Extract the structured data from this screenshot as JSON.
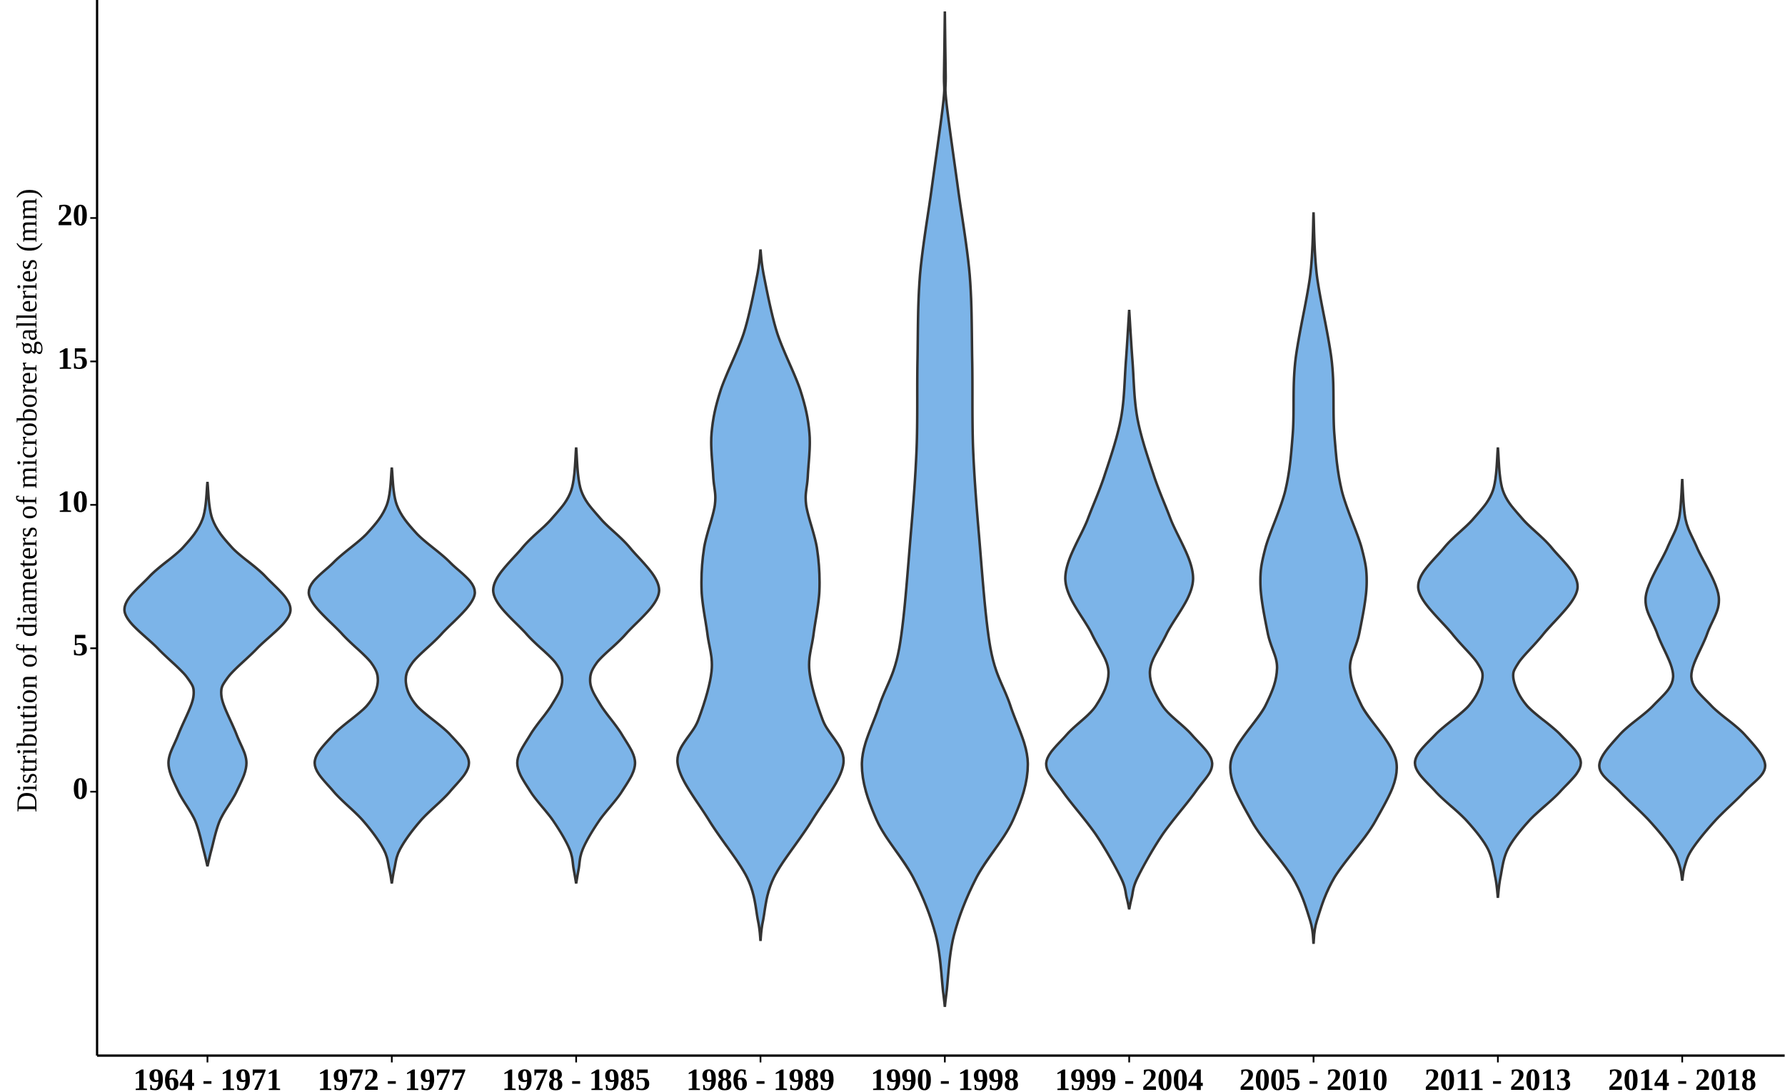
{
  "chart_data": {
    "type": "violin",
    "y_label": "Distribution of  diameters  of microborer galleries (mm)",
    "categories": [
      "1964 - 1971",
      "1972 - 1977",
      "1978 - 1985",
      "1986 - 1989",
      "1990 - 1998",
      "1999 - 2004",
      "2005 - 2010",
      "2011 - 2013",
      "2014 - 2018"
    ],
    "color": "#7cb4e8",
    "outline_color": "#333333",
    "ylim": [
      -9.2,
      27.6
    ],
    "yticks": [
      0,
      5,
      10,
      15,
      20
    ],
    "violins": [
      {
        "y": [
          10.8,
          9.5,
          8.5,
          7.5,
          6.3,
          5,
          4,
          3.3,
          2,
          1,
          0,
          -1,
          -2,
          -2.6
        ],
        "density": [
          0,
          0.06,
          0.3,
          0.7,
          1.0,
          0.6,
          0.25,
          0.17,
          0.35,
          0.47,
          0.35,
          0.15,
          0.05,
          0
        ]
      },
      {
        "y": [
          11.3,
          10,
          9,
          8,
          6.9,
          5.5,
          4.5,
          3.8,
          3,
          2,
          1,
          0,
          -1,
          -2,
          -2.7,
          -3.2
        ],
        "density": [
          0,
          0.06,
          0.3,
          0.7,
          1.0,
          0.6,
          0.25,
          0.17,
          0.3,
          0.7,
          0.93,
          0.7,
          0.35,
          0.1,
          0.03,
          0
        ]
      },
      {
        "y": [
          12,
          10.5,
          9.5,
          8.5,
          7,
          5.5,
          4.5,
          3.8,
          3,
          2,
          1,
          0,
          -1,
          -2,
          -2.7,
          -3.2
        ],
        "density": [
          0,
          0.06,
          0.3,
          0.65,
          1.0,
          0.6,
          0.25,
          0.17,
          0.3,
          0.55,
          0.71,
          0.55,
          0.28,
          0.08,
          0.03,
          0
        ]
      },
      {
        "y": [
          18.9,
          18,
          16,
          14,
          12.5,
          11,
          10,
          8.5,
          7,
          5.5,
          4.2,
          2.5,
          1,
          -1,
          -3,
          -4.5,
          -5.2
        ],
        "density": [
          0,
          0.04,
          0.2,
          0.48,
          0.59,
          0.57,
          0.55,
          0.68,
          0.71,
          0.64,
          0.59,
          0.75,
          1.0,
          0.62,
          0.16,
          0.03,
          0
        ]
      },
      {
        "y": [
          27.2,
          25,
          24,
          21,
          18,
          15,
          12,
          9,
          5,
          3,
          1,
          -1,
          -3,
          -5,
          -7,
          -7.5
        ],
        "density": [
          0,
          0.01,
          0.02,
          0.16,
          0.3,
          0.33,
          0.34,
          0.41,
          0.55,
          0.79,
          1.0,
          0.82,
          0.38,
          0.11,
          0.02,
          0
        ]
      },
      {
        "y": [
          16.8,
          15,
          13,
          11,
          9.5,
          7.4,
          5.5,
          4.2,
          3,
          2,
          1,
          0,
          -1.5,
          -3,
          -3.7,
          -4.1
        ],
        "density": [
          0,
          0.04,
          0.1,
          0.3,
          0.5,
          0.77,
          0.45,
          0.25,
          0.4,
          0.75,
          1.0,
          0.8,
          0.4,
          0.1,
          0.03,
          0
        ]
      },
      {
        "y": [
          20.2,
          18,
          15,
          12.5,
          10.5,
          8.5,
          7.2,
          5.5,
          4.3,
          3,
          1,
          -1,
          -3,
          -4.5,
          -5.3
        ],
        "density": [
          0,
          0.04,
          0.22,
          0.25,
          0.34,
          0.58,
          0.64,
          0.55,
          0.44,
          0.58,
          1.0,
          0.75,
          0.25,
          0.04,
          0
        ]
      },
      {
        "y": [
          12,
          10.5,
          9.5,
          8.5,
          7.1,
          5.5,
          4.5,
          3.9,
          3,
          2,
          1,
          0,
          -1,
          -2,
          -3,
          -3.7
        ],
        "density": [
          0,
          0.06,
          0.3,
          0.65,
          0.96,
          0.55,
          0.25,
          0.19,
          0.35,
          0.75,
          1.0,
          0.75,
          0.38,
          0.12,
          0.03,
          0
        ]
      },
      {
        "y": [
          10.9,
          9.5,
          8.5,
          6.8,
          5.5,
          4,
          3,
          2,
          0.9,
          0,
          -1,
          -2,
          -2.6,
          -3.1
        ],
        "density": [
          0,
          0.04,
          0.18,
          0.44,
          0.3,
          0.11,
          0.35,
          0.75,
          1.0,
          0.75,
          0.4,
          0.12,
          0.03,
          0
        ]
      }
    ]
  }
}
